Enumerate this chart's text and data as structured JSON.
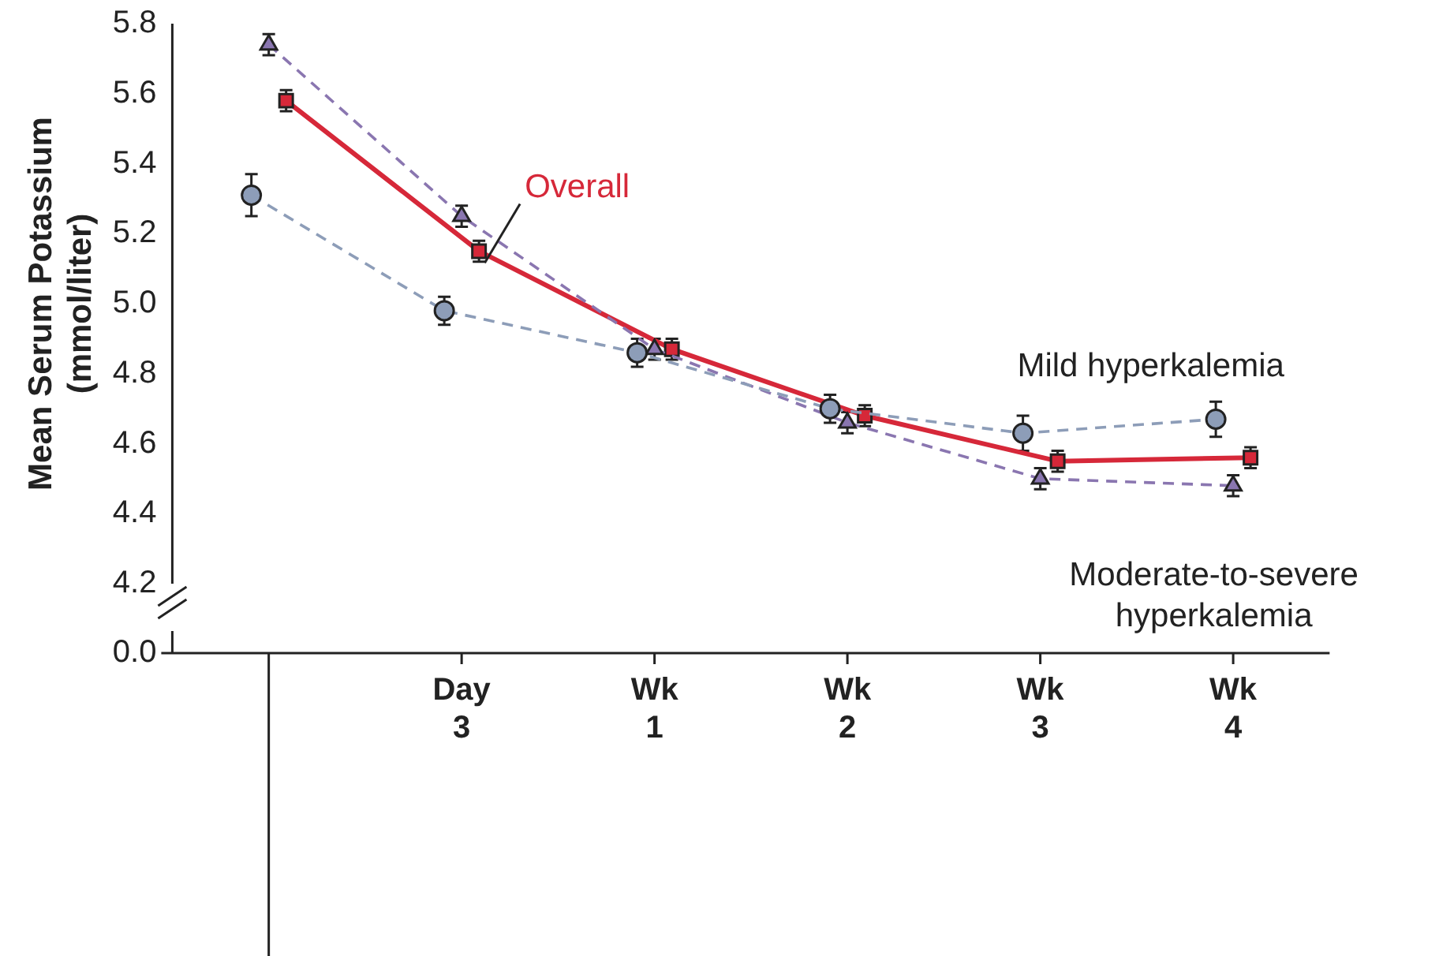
{
  "chart_data": {
    "type": "line",
    "ylabel": "Mean Serum Potassium\n(mmol/liter)",
    "categories": [
      null,
      "Day 3",
      "Wk 1",
      "Wk 2",
      "Wk 3",
      "Wk 4"
    ],
    "ylim": [
      4.2,
      5.8
    ],
    "yticks": [
      4.2,
      4.4,
      4.6,
      4.8,
      {
        "value": 5,
        "label": "5.0"
      },
      5.2,
      5.4,
      5.6,
      5.8
    ],
    "annotations": [
      "0.0"
    ],
    "grid": false,
    "legend": false,
    "series": [
      {
        "name": "Mild hyperkalemia",
        "color": "#8d9db8",
        "line_style": "dashed",
        "marker": "circle",
        "values": [
          5.31,
          4.98,
          4.86,
          4.7,
          4.63,
          4.67
        ],
        "errors": [
          0.06,
          0.04,
          0.04,
          0.04,
          0.05,
          0.05
        ]
      },
      {
        "name": "Moderate-to-severe\nhyperkalemia",
        "color": "#8a76b0",
        "line_style": "dashed",
        "marker": "triangle",
        "values": [
          5.74,
          5.25,
          4.87,
          4.66,
          4.5,
          4.48
        ],
        "errors": [
          0.03,
          0.03,
          0.03,
          0.03,
          0.03,
          0.03
        ]
      },
      {
        "name": "Overall",
        "color": "#d62839",
        "line_style": "solid",
        "marker": "square",
        "values": [
          5.58,
          5.15,
          4.87,
          4.68,
          4.55,
          4.56
        ],
        "errors": [
          0.03,
          0.03,
          0.03,
          0.03,
          0.03,
          0.03
        ]
      }
    ]
  }
}
